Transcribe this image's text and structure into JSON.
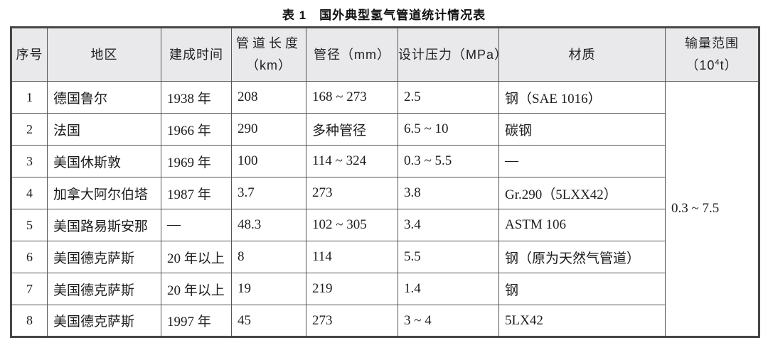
{
  "caption": {
    "label": "表 1",
    "text": "国外典型氢气管道统计情况表"
  },
  "table": {
    "headers": [
      {
        "line1": "序号"
      },
      {
        "line1": "地区"
      },
      {
        "line1": "建成时间"
      },
      {
        "line1": "管道长度",
        "line2": "（km）"
      },
      {
        "line1": "管径（mm）"
      },
      {
        "line1": "设计压力（MPa）"
      },
      {
        "line1": "材质"
      },
      {
        "line1": "输量范围",
        "line2_prefix": "（10",
        "line2_sup": "4",
        "line2_suffix": "t）"
      }
    ],
    "rows": [
      {
        "cells": [
          "1",
          "德国鲁尔",
          "1938 年",
          "208",
          "168 ~ 273",
          "2.5",
          "钢（SAE 1016）"
        ]
      },
      {
        "cells": [
          "2",
          "法国",
          "1966 年",
          "290",
          "多种管径",
          "6.5 ~ 10",
          "碳钢"
        ]
      },
      {
        "cells": [
          "3",
          "美国休斯敦",
          "1969 年",
          "100",
          "114 ~ 324",
          "0.3 ~ 5.5",
          "—"
        ]
      },
      {
        "cells": [
          "4",
          "加拿大阿尔伯塔",
          "1987 年",
          "3.7",
          "273",
          "3.8",
          "Gr.290（5LXX42）"
        ]
      },
      {
        "cells": [
          "5",
          "美国路易斯安那",
          "—",
          "48.3",
          "102 ~ 305",
          "3.4",
          "ASTM 106"
        ]
      },
      {
        "cells": [
          "6",
          "美国德克萨斯",
          "20 年以上",
          "8",
          "114",
          "5.5",
          "钢（原为天然气管道）"
        ]
      },
      {
        "cells": [
          "7",
          "美国德克萨斯",
          "20 年以上",
          "19",
          "219",
          "1.4",
          "钢"
        ]
      },
      {
        "cells": [
          "8",
          "美国德克萨斯",
          "1997 年",
          "45",
          "273",
          "3 ~ 4",
          "5LX42"
        ]
      }
    ],
    "merged_cell": "0.3 ~ 7.5"
  },
  "colors": {
    "header_background": "#e9e9ec",
    "outer_border": "#464646",
    "inner_border": "#565656",
    "text": "#1c1c1c",
    "page_background": "#ffffff"
  }
}
